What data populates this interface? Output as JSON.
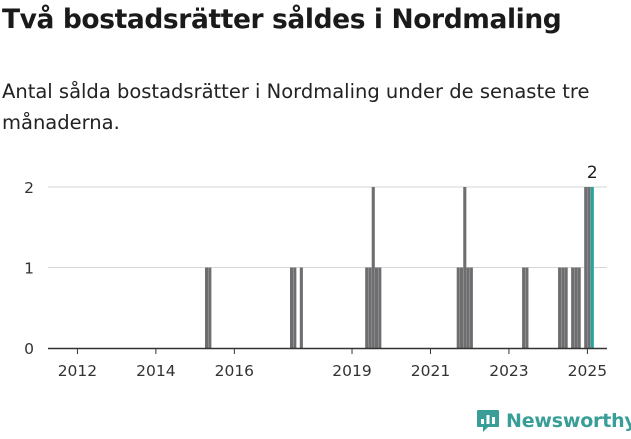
{
  "header": {
    "title": "Två bostadsrätter såldes i Nordmaling",
    "subtitle": "Antal sålda bostadsrätter i Nordmaling under de senaste tre månaderna."
  },
  "brand": {
    "name": "Newsworthy",
    "color": "#3a9e98"
  },
  "colors": {
    "bar": "#6e6e70",
    "highlight": "#26a59a",
    "grid": "#d6d6d6",
    "axis": "#333333"
  },
  "chart_data": {
    "type": "bar",
    "title": "Två bostadsrätter såldes i Nordmaling",
    "xlabel": "",
    "ylabel": "",
    "x_unit": "month",
    "x_range": [
      "2011-04",
      "2025-07"
    ],
    "ylim": [
      0,
      2
    ],
    "yticks": [
      0,
      1,
      2
    ],
    "xticks": [
      "2012",
      "2014",
      "2016",
      "2019",
      "2021",
      "2023",
      "2025"
    ],
    "grid": true,
    "legend": "none",
    "series": [
      {
        "values": [
          {
            "x": "2015-04",
            "y": 1
          },
          {
            "x": "2015-05",
            "y": 1
          },
          {
            "x": "2017-06",
            "y": 1
          },
          {
            "x": "2017-07",
            "y": 1
          },
          {
            "x": "2017-09",
            "y": 1
          },
          {
            "x": "2019-05",
            "y": 1
          },
          {
            "x": "2019-06",
            "y": 1
          },
          {
            "x": "2019-07",
            "y": 2
          },
          {
            "x": "2019-08",
            "y": 1
          },
          {
            "x": "2019-09",
            "y": 1
          },
          {
            "x": "2021-09",
            "y": 1
          },
          {
            "x": "2021-10",
            "y": 1
          },
          {
            "x": "2021-11",
            "y": 2
          },
          {
            "x": "2021-12",
            "y": 1
          },
          {
            "x": "2022-01",
            "y": 1
          },
          {
            "x": "2023-05",
            "y": 1
          },
          {
            "x": "2023-06",
            "y": 1
          },
          {
            "x": "2024-04",
            "y": 1
          },
          {
            "x": "2024-05",
            "y": 1
          },
          {
            "x": "2024-06",
            "y": 1
          },
          {
            "x": "2024-08",
            "y": 1
          },
          {
            "x": "2024-09",
            "y": 1
          },
          {
            "x": "2024-10",
            "y": 1
          },
          {
            "x": "2024-12",
            "y": 2
          },
          {
            "x": "2025-01",
            "y": 2
          },
          {
            "x": "2025-02",
            "y": 2,
            "highlight": true
          }
        ]
      }
    ],
    "annotations": [
      {
        "x": "2025-02",
        "y": 2,
        "text": "2"
      }
    ]
  }
}
